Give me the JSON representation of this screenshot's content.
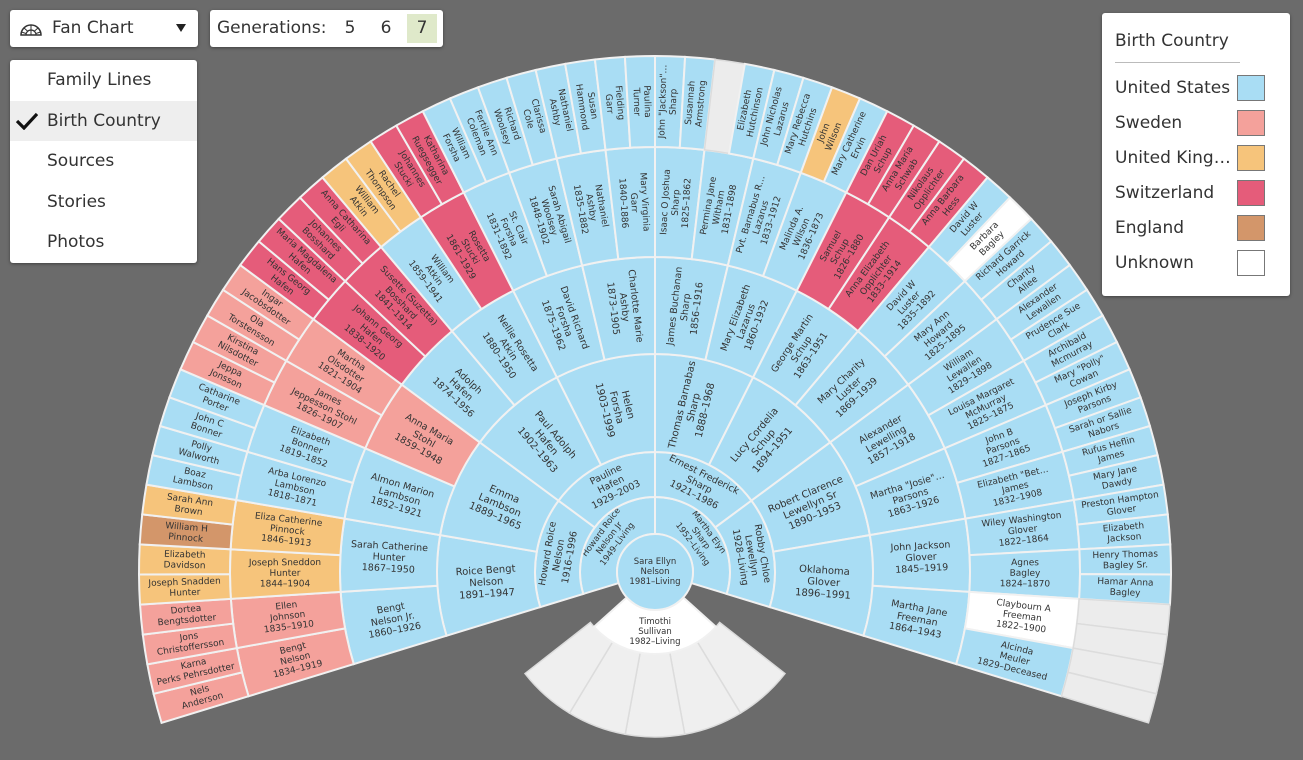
{
  "toolbar": {
    "view": "Fan Chart",
    "generations": {
      "label": "Generations:",
      "options": [
        5,
        6,
        7
      ],
      "selected": 7
    }
  },
  "menu": {
    "items": [
      "Family Lines",
      "Birth Country",
      "Sources",
      "Stories",
      "Photos"
    ],
    "checked": 1
  },
  "legend": {
    "title": "Birth Country",
    "items": [
      {
        "label": "United States",
        "color": "#a9ddf4"
      },
      {
        "label": "Sweden",
        "color": "#f4a19b"
      },
      {
        "label": "United King…",
        "color": "#f6c47b"
      },
      {
        "label": "Switzerland",
        "color": "#e55c7a"
      },
      {
        "label": "England",
        "color": "#d3966a"
      },
      {
        "label": "Unknown",
        "color": "#ffffff"
      }
    ]
  },
  "fan": {
    "root": {
      "n": [
        "Sara Ellyn",
        "Nelson"
      ],
      "d": "1981–Living",
      "c": "United States"
    },
    "spouse": {
      "n": [
        "Timothi",
        "Sullivan"
      ],
      "d": "1982–Living"
    },
    "rings": [
      [
        {
          "n": [
            "Howard Roice",
            "Nelson Jr"
          ],
          "d": "1949–Living",
          "c": "United States"
        },
        {
          "n": [
            "Martha Elyn",
            "Sharp"
          ],
          "d": "1952–Living",
          "c": "United States"
        }
      ],
      [
        {
          "n": [
            "Howard Roice",
            "Nelson"
          ],
          "d": "1916–1996",
          "c": "United States"
        },
        {
          "n": [
            "Pauline",
            "Hafen"
          ],
          "d": "1929–2003",
          "c": "United States"
        },
        {
          "n": [
            "Ernest Frederick",
            "Sharp"
          ],
          "d": "1921–1986",
          "c": "United States"
        },
        {
          "n": [
            "Robby Chloe",
            "Lewellyn"
          ],
          "d": "1928–Living",
          "c": "United States"
        }
      ],
      [
        {
          "n": [
            "Roice Bengt",
            "Nelson"
          ],
          "d": "1891–1947",
          "c": "United States"
        },
        {
          "n": [
            "Emma",
            "Lambson"
          ],
          "d": "1889–1965",
          "c": "United States"
        },
        {
          "n": [
            "Paul Adolph",
            "Hafen"
          ],
          "d": "1902–1963",
          "c": "United States"
        },
        {
          "n": [
            "Helen",
            "Forsha"
          ],
          "d": "1903–1999",
          "c": "United States"
        },
        {
          "n": [
            "Thomas Barnabas",
            "Sharp"
          ],
          "d": "1888–1968",
          "c": "United States"
        },
        {
          "n": [
            "Lucy Cordelia",
            "Schup"
          ],
          "d": "1894–1951",
          "c": "United States"
        },
        {
          "n": [
            "Robert Clarence",
            "Lewellyn Sr"
          ],
          "d": "1890–1953",
          "c": "United States"
        },
        {
          "n": [
            "Oklahoma",
            "Glover"
          ],
          "d": "1896–1991",
          "c": "United States"
        }
      ],
      [
        {
          "n": [
            "Bengt",
            "Nelson Jr."
          ],
          "d": "1860–1926",
          "c": "United States"
        },
        {
          "n": [
            "Sarah Catherine",
            "Hunter"
          ],
          "d": "1867–1950",
          "c": "United States"
        },
        {
          "n": [
            "Almon Marion",
            "Lambson"
          ],
          "d": "1852–1921",
          "c": "United States"
        },
        {
          "n": [
            "Anna Maria",
            "Stohl"
          ],
          "d": "1859–1948",
          "c": "Sweden"
        },
        {
          "n": [
            "Adolph",
            "Hafen"
          ],
          "d": "1874–1956",
          "c": "United States"
        },
        {
          "n": [
            "Nellie Rosetta",
            "Atkin"
          ],
          "d": "1880–1950",
          "c": "United States"
        },
        {
          "n": [
            "David Richard",
            "Forsha"
          ],
          "d": "1875–1962",
          "c": "United States"
        },
        {
          "n": [
            "Charlotte Marie",
            "Ashby"
          ],
          "d": "1873–1905",
          "c": "United States"
        },
        {
          "n": [
            "James Buchanan",
            "Sharp"
          ],
          "d": "1856–1916",
          "c": "United States"
        },
        {
          "n": [
            "Mary Elizabeth",
            "Lazarus"
          ],
          "d": "1860–1932",
          "c": "United States"
        },
        {
          "n": [
            "George Martin",
            "Schup"
          ],
          "d": "1863–1951",
          "c": "United States"
        },
        {
          "n": [
            "Mary Charity",
            "Luster"
          ],
          "d": "1869–1939",
          "c": "United States"
        },
        {
          "n": [
            "Alexander",
            "Lewelling"
          ],
          "d": "1857–1918",
          "c": "United States"
        },
        {
          "n": [
            "Martha \"Josie\"…",
            "Parsons"
          ],
          "d": "1863–1926",
          "c": "United States"
        },
        {
          "n": [
            "John Jackson",
            "Glover"
          ],
          "d": "1845–1919",
          "c": "United States"
        },
        {
          "n": [
            "Martha Jane",
            "Freeman"
          ],
          "d": "1864–1943",
          "c": "United States"
        }
      ],
      [
        {
          "n": [
            "Bengt",
            "Nelson"
          ],
          "d": "1834–1919",
          "c": "Sweden"
        },
        {
          "n": [
            "Ellen",
            "Johnson"
          ],
          "d": "1835–1910",
          "c": "Sweden"
        },
        {
          "n": [
            "Joseph Sneddon",
            "Hunter"
          ],
          "d": "1844–1904",
          "c": "United King…"
        },
        {
          "n": [
            "Eliza Catherine",
            "Pinnock"
          ],
          "d": "1846–1913",
          "c": "United King…"
        },
        {
          "n": [
            "Arba Lorenzo",
            "Lambson"
          ],
          "d": "1818–1871",
          "c": "United States"
        },
        {
          "n": [
            "Elizabeth",
            "Bonner"
          ],
          "d": "1819–1852",
          "c": "United States"
        },
        {
          "n": [
            "James",
            "Jeppesson Stohl"
          ],
          "d": "1826–1907",
          "c": "Sweden"
        },
        {
          "n": [
            "Martha",
            "Olsdotter"
          ],
          "d": "1821–1904",
          "c": "Sweden"
        },
        {
          "n": [
            "Johann Georg",
            "Hafen"
          ],
          "d": "1838–1920",
          "c": "Switzerland"
        },
        {
          "n": [
            "Susette (Suzetta)",
            "Bosshard"
          ],
          "d": "1841–1914",
          "c": "Switzerland"
        },
        {
          "n": [
            "William",
            "Atkin"
          ],
          "d": "1859–1941",
          "c": "United States"
        },
        {
          "n": [
            "Rosetta",
            "Stucki"
          ],
          "d": "1861–1929",
          "c": "Switzerland"
        },
        {
          "n": [
            "St. Clair",
            "Forsha"
          ],
          "d": "1831–1892",
          "c": "United States"
        },
        {
          "n": [
            "Sarah Abigail",
            "Woolsey"
          ],
          "d": "1848–1902",
          "c": "United States"
        },
        {
          "n": [
            "Nathaniel",
            "Ashby"
          ],
          "d": "1835–1882",
          "c": "United States"
        },
        {
          "n": [
            "Mary Virginia",
            "Garr"
          ],
          "d": "1840–1886",
          "c": "United States"
        },
        {
          "n": [
            "Isaac O Joshua",
            "Sharp"
          ],
          "d": "1825–1862",
          "c": "United States"
        },
        {
          "n": [
            "Permina Jane",
            "Witham"
          ],
          "d": "1831–1898",
          "c": "United States"
        },
        {
          "n": [
            "Pvt. Barnabus R…",
            "Lazarus"
          ],
          "d": "1833–1912",
          "c": "United States"
        },
        {
          "n": [
            "Malinda A.",
            "Wilson"
          ],
          "d": "1836–1873",
          "c": "United States"
        },
        {
          "n": [
            "Samuel",
            "Schup"
          ],
          "d": "1826–1880",
          "c": "Switzerland"
        },
        {
          "n": [
            "Anna Elizabeth",
            "Opplichter"
          ],
          "d": "1833–1914",
          "c": "Switzerland"
        },
        {
          "n": [
            "David W",
            "Luster"
          ],
          "d": "1835–1892",
          "c": "United States"
        },
        {
          "n": [
            "Mary Ann",
            "Howard"
          ],
          "d": "1825–1895",
          "c": "United States"
        },
        {
          "n": [
            "William",
            "Lewallen"
          ],
          "d": "1829–1898",
          "c": "United States"
        },
        {
          "n": [
            "Louisa Margaret",
            "McMurray"
          ],
          "d": "1825–1875",
          "c": "United States"
        },
        {
          "n": [
            "John B",
            "Parsons"
          ],
          "d": "1827–1865",
          "c": "United States"
        },
        {
          "n": [
            "Elizabeth \"Bet…",
            "James"
          ],
          "d": "1832–1908",
          "c": "United States"
        },
        {
          "n": [
            "Wiley Washington",
            "Glover"
          ],
          "d": "1822–1864",
          "c": "United States"
        },
        {
          "n": [
            "Agnes",
            "Bagley"
          ],
          "d": "1824–1870",
          "c": "United States"
        },
        {
          "n": [
            "Claybourn A",
            "Freeman"
          ],
          "d": "1822–1900",
          "c": "Unknown"
        },
        {
          "n": [
            "Alcinda",
            "Meuler"
          ],
          "d": "1829–Deceased",
          "c": "United States"
        }
      ],
      [
        {
          "n": [
            "Nels",
            "Anderson"
          ],
          "c": "Sweden"
        },
        {
          "n": [
            "Karna",
            "Perks Pehrsdotter"
          ],
          "c": "Sweden"
        },
        {
          "n": [
            "Jons",
            "Christoffersson"
          ],
          "c": "Sweden"
        },
        {
          "n": [
            "Dortea",
            "Bengtsdotter"
          ],
          "c": "Sweden"
        },
        {
          "n": [
            "Joseph Snadden",
            "Hunter"
          ],
          "c": "United King…"
        },
        {
          "n": [
            "Elizabeth",
            "Davidson"
          ],
          "c": "United King…"
        },
        {
          "n": [
            "William H",
            "Pinnock"
          ],
          "c": "England"
        },
        {
          "n": [
            "Sarah Ann",
            "Brown"
          ],
          "c": "United King…"
        },
        {
          "n": [
            "Boaz",
            "Lambson"
          ],
          "c": "United States"
        },
        {
          "n": [
            "Polly",
            "Walworth"
          ],
          "c": "United States"
        },
        {
          "n": [
            "John C",
            "Bonner"
          ],
          "c": "United States"
        },
        {
          "n": [
            "Catharine",
            "Porter"
          ],
          "c": "United States"
        },
        {
          "n": [
            "Jeppa",
            "Jonsson"
          ],
          "c": "Sweden"
        },
        {
          "n": [
            "Kirstina",
            "Nilsdotter"
          ],
          "c": "Sweden"
        },
        {
          "n": [
            "Ola",
            "Torstensson"
          ],
          "c": "Sweden"
        },
        {
          "n": [
            "Ingar",
            "Jacobsdotter"
          ],
          "c": "Sweden"
        },
        {
          "n": [
            "Hans Georg",
            "Hafen"
          ],
          "c": "Switzerland"
        },
        {
          "n": [
            "Maria Magdalena",
            "Hafen"
          ],
          "c": "Switzerland"
        },
        {
          "n": [
            "Johannes",
            "Bosshard"
          ],
          "c": "Switzerland"
        },
        {
          "n": [
            "Anna Catharina",
            "Egli"
          ],
          "c": "Switzerland"
        },
        {
          "n": [
            "William",
            "Atkin"
          ],
          "c": "United King…"
        },
        {
          "n": [
            "Rachel",
            "Thompson"
          ],
          "c": "United King…"
        },
        {
          "n": [
            "Johannes",
            "Stucki"
          ],
          "c": "Switzerland"
        },
        {
          "n": [
            "Katharina",
            "Ruegsegger"
          ],
          "c": "Switzerland"
        },
        {
          "n": [
            "William",
            "Forsha"
          ],
          "c": "United States"
        },
        {
          "n": [
            "Fertile Ann",
            "Coleman"
          ],
          "c": "United States"
        },
        {
          "n": [
            "Richard",
            "Woolsey"
          ],
          "c": "United States"
        },
        {
          "n": [
            "Clarissa",
            "Cole"
          ],
          "c": "United States"
        },
        {
          "n": [
            "Nathaniel",
            "Ashby"
          ],
          "c": "United States"
        },
        {
          "n": [
            "Susan",
            "Hammond"
          ],
          "c": "United States"
        },
        {
          "n": [
            "Fielding",
            "Garr"
          ],
          "c": "United States"
        },
        {
          "n": [
            "Paulina",
            "Turner"
          ],
          "c": "United States"
        },
        {
          "n": [
            "John \"Jackson\"…",
            "Sharp"
          ],
          "c": "United States"
        },
        {
          "n": [
            "Susannah",
            "Armstrong"
          ],
          "c": "United States"
        },
        null,
        {
          "n": [
            "Elizabeth",
            "Hutchinson"
          ],
          "c": "United States"
        },
        {
          "n": [
            "John Nicholas",
            "Lazarus"
          ],
          "c": "United States"
        },
        {
          "n": [
            "Mary Rebecca",
            "Hutchins"
          ],
          "c": "United States"
        },
        {
          "n": [
            "John",
            "Wilson"
          ],
          "c": "United King…"
        },
        {
          "n": [
            "Mary Catherine",
            "Ervin"
          ],
          "c": "United States"
        },
        {
          "n": [
            "Dan Uriah",
            "Schup"
          ],
          "c": "Switzerland"
        },
        {
          "n": [
            "Anna Maria",
            "Schwab"
          ],
          "c": "Switzerland"
        },
        {
          "n": [
            "Nikolaus",
            "Opplichter"
          ],
          "c": "Switzerland"
        },
        {
          "n": [
            "Anna Barbara",
            "Hess"
          ],
          "c": "Switzerland"
        },
        {
          "n": [
            "David W",
            "Luster"
          ],
          "c": "United States"
        },
        {
          "n": [
            "Barbara",
            "Bagley"
          ],
          "c": "Unknown"
        },
        {
          "n": [
            "Richard Garrick",
            "Howard"
          ],
          "c": "United States"
        },
        {
          "n": [
            "Charity",
            "Allee"
          ],
          "c": "United States"
        },
        {
          "n": [
            "Alexander",
            "Lewallen"
          ],
          "c": "United States"
        },
        {
          "n": [
            "Prudence Sue",
            "Clark"
          ],
          "c": "United States"
        },
        {
          "n": [
            "Archibald",
            "Mcmurray"
          ],
          "c": "United States"
        },
        {
          "n": [
            "Mary \"Polly\"",
            "Cowan"
          ],
          "c": "United States"
        },
        {
          "n": [
            "Joseph Kirby",
            "Parsons"
          ],
          "c": "United States"
        },
        {
          "n": [
            "Sarah or Sallie",
            "Nabors"
          ],
          "c": "United States"
        },
        {
          "n": [
            "Rufus Heflin",
            "James"
          ],
          "c": "United States"
        },
        {
          "n": [
            "Mary Jane",
            "Dawdy"
          ],
          "c": "United States"
        },
        {
          "n": [
            "Preston Hampton",
            "Glover"
          ],
          "c": "United States"
        },
        {
          "n": [
            "Elizabeth",
            "Jackson"
          ],
          "c": "United States"
        },
        {
          "n": [
            "Henry Thomas",
            "Bagley Sr."
          ],
          "c": "United States"
        },
        {
          "n": [
            "Hamar Anna",
            "Bagley"
          ],
          "c": "United States"
        },
        null,
        null,
        null,
        null
      ]
    ]
  }
}
